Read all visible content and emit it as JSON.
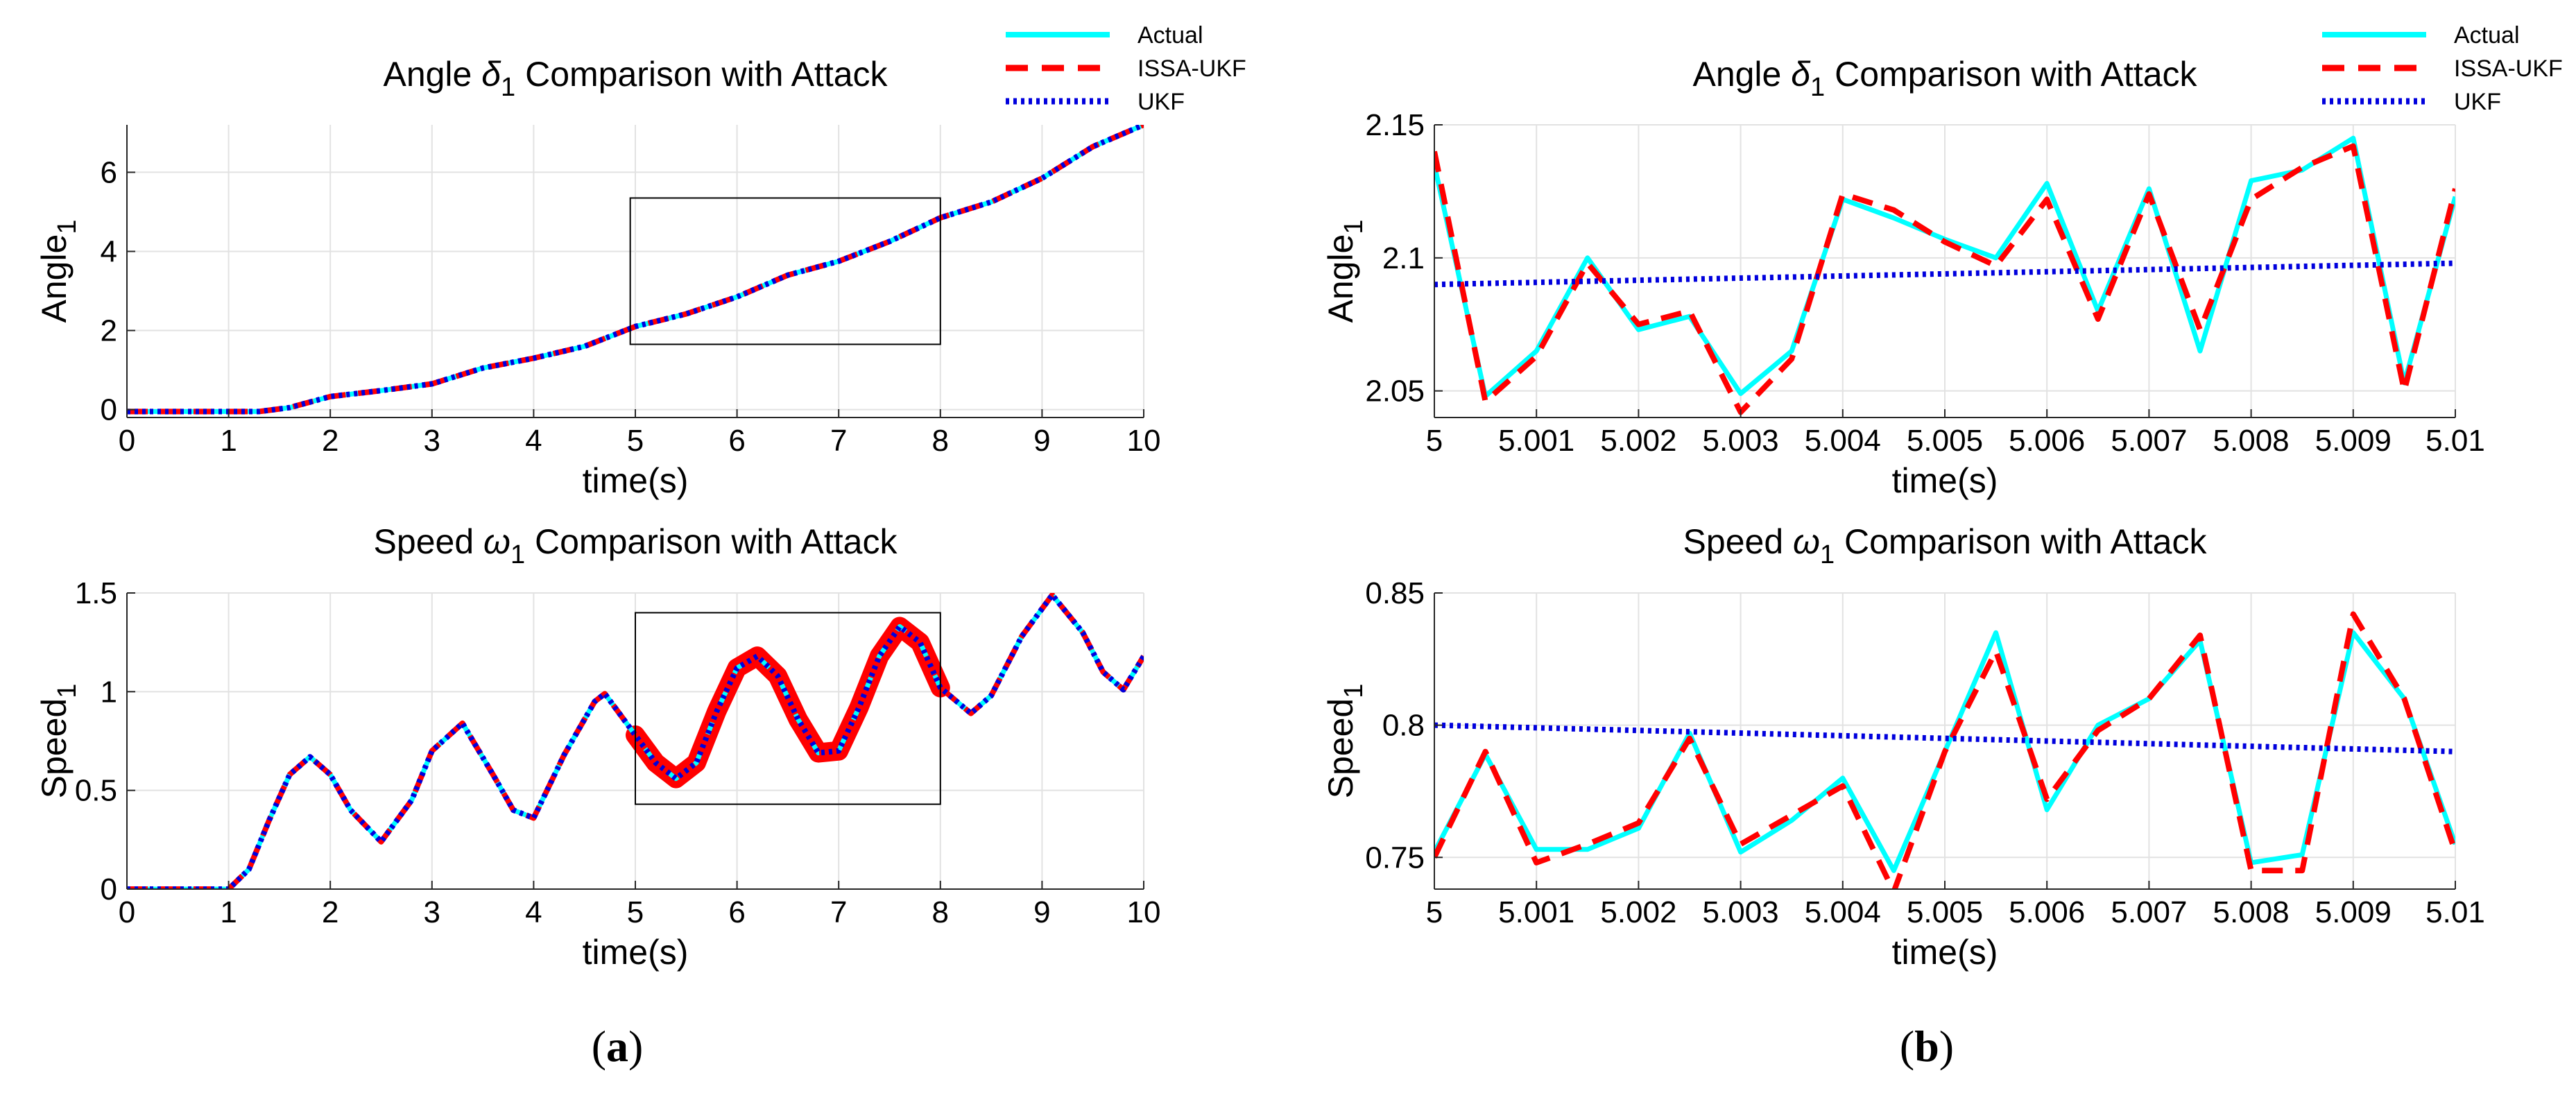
{
  "chart_data": [
    {
      "type": "line",
      "title_prefix": "Angle ",
      "title_symbol": "δ",
      "title_sub": "1",
      "title_suffix": " Comparison with Attack",
      "xlabel": "time(s)",
      "ylabel_base": "Angle",
      "ylabel_sub": "1",
      "xlim": [
        0,
        10
      ],
      "ylim": [
        -0.2,
        7.2
      ],
      "xticks": [
        0,
        1,
        2,
        3,
        4,
        5,
        6,
        7,
        8,
        9,
        10
      ],
      "xtick_labels": [
        "0",
        "1",
        "2",
        "3",
        "4",
        "5",
        "6",
        "7",
        "8",
        "9",
        "10"
      ],
      "yticks": [
        0,
        2,
        4,
        6
      ],
      "ytick_labels": [
        "0",
        "2",
        "4",
        "6"
      ],
      "zoom_box": {
        "x": [
          4.95,
          8.0
        ],
        "y": [
          1.65,
          5.35
        ]
      },
      "legend": [
        "Actual",
        "ISSA-UKF",
        "UKF"
      ],
      "series": [
        {
          "name": "Actual",
          "color": "#00ffff",
          "style": "solid",
          "x": [
            0,
            1,
            1.3,
            1.6,
            2,
            2.5,
            3,
            3.5,
            4,
            4.5,
            5,
            5.5,
            6,
            6.5,
            7,
            7.5,
            8,
            8.5,
            9,
            9.5,
            10
          ],
          "y": [
            -0.05,
            -0.05,
            -0.05,
            0.05,
            0.33,
            0.48,
            0.65,
            1.05,
            1.3,
            1.6,
            2.1,
            2.42,
            2.85,
            3.4,
            3.75,
            4.25,
            4.85,
            5.25,
            5.85,
            6.65,
            7.2
          ]
        },
        {
          "name": "ISSA-UKF",
          "color": "#ff0000",
          "style": "dashed",
          "x": [
            0,
            1,
            1.3,
            1.6,
            2,
            2.5,
            3,
            3.5,
            4,
            4.5,
            5,
            5.5,
            6,
            6.5,
            7,
            7.5,
            8,
            8.5,
            9,
            9.5,
            10
          ],
          "y": [
            -0.05,
            -0.05,
            -0.05,
            0.05,
            0.33,
            0.48,
            0.65,
            1.05,
            1.3,
            1.6,
            2.1,
            2.42,
            2.85,
            3.4,
            3.75,
            4.25,
            4.85,
            5.25,
            5.85,
            6.65,
            7.2
          ]
        },
        {
          "name": "UKF",
          "color": "#0000dd",
          "style": "dotted",
          "x": [
            0,
            1,
            1.3,
            1.6,
            2,
            2.5,
            3,
            3.5,
            4,
            4.5,
            5,
            5.5,
            6,
            6.5,
            7,
            7.5,
            8,
            8.5,
            9,
            9.5,
            10
          ],
          "y": [
            -0.05,
            -0.05,
            -0.05,
            0.05,
            0.33,
            0.48,
            0.65,
            1.05,
            1.3,
            1.6,
            2.1,
            2.42,
            2.85,
            3.4,
            3.75,
            4.25,
            4.85,
            5.25,
            5.85,
            6.65,
            7.2
          ]
        }
      ]
    },
    {
      "type": "line",
      "title_prefix": "Angle ",
      "title_symbol": "δ",
      "title_sub": "1",
      "title_suffix": " Comparison with Attack",
      "xlabel": "time(s)",
      "ylabel_base": "Angle",
      "ylabel_sub": "1",
      "xlim": [
        5,
        5.01
      ],
      "ylim": [
        2.04,
        2.15
      ],
      "xticks": [
        5,
        5.001,
        5.002,
        5.003,
        5.004,
        5.005,
        5.006,
        5.007,
        5.008,
        5.009,
        5.01
      ],
      "xtick_labels": [
        "5",
        "5.001",
        "5.002",
        "5.003",
        "5.004",
        "5.005",
        "5.006",
        "5.007",
        "5.008",
        "5.009",
        "5.01"
      ],
      "yticks": [
        2.05,
        2.1,
        2.15
      ],
      "ytick_labels": [
        "2.05",
        "2.1",
        "2.15"
      ],
      "legend": [
        "Actual",
        "ISSA-UKF",
        "UKF"
      ],
      "series": [
        {
          "name": "Actual",
          "color": "#00ffff",
          "style": "solid",
          "x": [
            5,
            5.0005,
            5.001,
            5.0015,
            5.002,
            5.0025,
            5.003,
            5.0035,
            5.004,
            5.0045,
            5.005,
            5.0055,
            5.006,
            5.0065,
            5.007,
            5.0075,
            5.008,
            5.0085,
            5.009,
            5.0095,
            5.01
          ],
          "y": [
            2.135,
            2.048,
            2.065,
            2.1,
            2.073,
            2.078,
            2.049,
            2.065,
            2.122,
            2.115,
            2.107,
            2.1,
            2.128,
            2.08,
            2.126,
            2.065,
            2.129,
            2.133,
            2.145,
            2.053,
            2.123
          ]
        },
        {
          "name": "ISSA-UKF",
          "color": "#ff0000",
          "style": "dashed",
          "x": [
            5,
            5.0005,
            5.001,
            5.0015,
            5.002,
            5.0025,
            5.003,
            5.0035,
            5.004,
            5.0045,
            5.005,
            5.0055,
            5.006,
            5.0065,
            5.007,
            5.0075,
            5.008,
            5.0085,
            5.009,
            5.0095,
            5.01
          ],
          "y": [
            2.14,
            2.046,
            2.063,
            2.098,
            2.075,
            2.08,
            2.042,
            2.062,
            2.124,
            2.118,
            2.106,
            2.097,
            2.122,
            2.077,
            2.124,
            2.073,
            2.122,
            2.134,
            2.142,
            2.05,
            2.126
          ]
        },
        {
          "name": "UKF",
          "color": "#0000dd",
          "style": "dotted",
          "x": [
            5,
            5.01
          ],
          "y": [
            2.09,
            2.098
          ]
        }
      ]
    },
    {
      "type": "line",
      "title_prefix": "Speed ",
      "title_symbol": "ω",
      "title_sub": "1",
      "title_suffix": " Comparison with Attack",
      "xlabel": "time(s)",
      "ylabel_base": "Speed",
      "ylabel_sub": "1",
      "xlim": [
        0,
        10
      ],
      "ylim": [
        0,
        1.5
      ],
      "xticks": [
        0,
        1,
        2,
        3,
        4,
        5,
        6,
        7,
        8,
        9,
        10
      ],
      "xtick_labels": [
        "0",
        "1",
        "2",
        "3",
        "4",
        "5",
        "6",
        "7",
        "8",
        "9",
        "10"
      ],
      "yticks": [
        0,
        0.5,
        1,
        1.5
      ],
      "ytick_labels": [
        "0",
        "0.5",
        "1",
        "1.5"
      ],
      "zoom_box": {
        "x": [
          5.0,
          8.0
        ],
        "y": [
          0.43,
          1.4
        ]
      },
      "noise_band": {
        "x": [
          5.0,
          8.0
        ],
        "width": 0.05
      },
      "legend": [
        "Actual",
        "ISSA-UKF",
        "UKF"
      ],
      "series": [
        {
          "name": "Actual",
          "color": "#00ffff",
          "style": "solid",
          "x": [
            0,
            1,
            1.2,
            1.4,
            1.6,
            1.8,
            2,
            2.2,
            2.5,
            2.8,
            3.0,
            3.3,
            3.6,
            3.8,
            4.0,
            4.3,
            4.6,
            4.7,
            5.0,
            5.2,
            5.4,
            5.6,
            5.8,
            6.0,
            6.2,
            6.4,
            6.6,
            6.8,
            7.0,
            7.2,
            7.4,
            7.6,
            7.8,
            8.0,
            8.3,
            8.5,
            8.8,
            9.1,
            9.4,
            9.6,
            9.8,
            10
          ],
          "y": [
            0,
            0,
            0.1,
            0.35,
            0.58,
            0.67,
            0.58,
            0.4,
            0.24,
            0.45,
            0.7,
            0.84,
            0.58,
            0.4,
            0.36,
            0.68,
            0.95,
            0.99,
            0.78,
            0.64,
            0.56,
            0.64,
            0.9,
            1.12,
            1.18,
            1.08,
            0.86,
            0.69,
            0.7,
            0.92,
            1.18,
            1.33,
            1.25,
            1.02,
            0.89,
            0.98,
            1.28,
            1.49,
            1.3,
            1.1,
            1.01,
            1.18
          ]
        },
        {
          "name": "ISSA-UKF",
          "color": "#ff0000",
          "style": "dashed",
          "x": [
            0,
            1,
            1.2,
            1.4,
            1.6,
            1.8,
            2,
            2.2,
            2.5,
            2.8,
            3.0,
            3.3,
            3.6,
            3.8,
            4.0,
            4.3,
            4.6,
            4.7,
            5.0,
            5.2,
            5.4,
            5.6,
            5.8,
            6.0,
            6.2,
            6.4,
            6.6,
            6.8,
            7.0,
            7.2,
            7.4,
            7.6,
            7.8,
            8.0,
            8.3,
            8.5,
            8.8,
            9.1,
            9.4,
            9.6,
            9.8,
            10
          ],
          "y": [
            0,
            0,
            0.1,
            0.35,
            0.58,
            0.67,
            0.58,
            0.4,
            0.24,
            0.45,
            0.7,
            0.84,
            0.58,
            0.4,
            0.36,
            0.68,
            0.95,
            0.99,
            0.78,
            0.64,
            0.56,
            0.64,
            0.9,
            1.12,
            1.18,
            1.08,
            0.86,
            0.69,
            0.7,
            0.92,
            1.18,
            1.33,
            1.25,
            1.02,
            0.89,
            0.98,
            1.28,
            1.49,
            1.3,
            1.1,
            1.01,
            1.18
          ]
        },
        {
          "name": "UKF",
          "color": "#0000dd",
          "style": "dotted",
          "x": [
            0,
            1,
            1.2,
            1.4,
            1.6,
            1.8,
            2,
            2.2,
            2.5,
            2.8,
            3.0,
            3.3,
            3.6,
            3.8,
            4.0,
            4.3,
            4.6,
            4.7,
            5.0,
            5.2,
            5.4,
            5.6,
            5.8,
            6.0,
            6.2,
            6.4,
            6.6,
            6.8,
            7.0,
            7.2,
            7.4,
            7.6,
            7.8,
            8.0,
            8.3,
            8.5,
            8.8,
            9.1,
            9.4,
            9.6,
            9.8,
            10
          ],
          "y": [
            0,
            0,
            0.1,
            0.35,
            0.58,
            0.67,
            0.58,
            0.4,
            0.24,
            0.45,
            0.7,
            0.84,
            0.58,
            0.4,
            0.36,
            0.68,
            0.95,
            0.99,
            0.78,
            0.64,
            0.56,
            0.64,
            0.9,
            1.12,
            1.18,
            1.08,
            0.86,
            0.69,
            0.7,
            0.92,
            1.18,
            1.33,
            1.25,
            1.02,
            0.89,
            0.98,
            1.28,
            1.49,
            1.3,
            1.1,
            1.01,
            1.18
          ]
        }
      ]
    },
    {
      "type": "line",
      "title_prefix": "Speed ",
      "title_symbol": "ω",
      "title_sub": "1",
      "title_suffix": " Comparison with Attack",
      "xlabel": "time(s)",
      "ylabel_base": "Speed",
      "ylabel_sub": "1",
      "xlim": [
        5,
        5.01
      ],
      "ylim": [
        0.738,
        0.85
      ],
      "xticks": [
        5,
        5.001,
        5.002,
        5.003,
        5.004,
        5.005,
        5.006,
        5.007,
        5.008,
        5.009,
        5.01
      ],
      "xtick_labels": [
        "5",
        "5.001",
        "5.002",
        "5.003",
        "5.004",
        "5.005",
        "5.006",
        "5.007",
        "5.008",
        "5.009",
        "5.01"
      ],
      "yticks": [
        0.75,
        0.8,
        0.85
      ],
      "ytick_labels": [
        "0.75",
        "0.8",
        "0.85"
      ],
      "legend": [
        "Actual",
        "ISSA-UKF",
        "UKF"
      ],
      "series": [
        {
          "name": "Actual",
          "color": "#00ffff",
          "style": "solid",
          "x": [
            5,
            5.0005,
            5.001,
            5.0015,
            5.002,
            5.0025,
            5.003,
            5.0035,
            5.004,
            5.0045,
            5.005,
            5.0055,
            5.006,
            5.0065,
            5.007,
            5.0075,
            5.008,
            5.0085,
            5.009,
            5.0095,
            5.01
          ],
          "y": [
            0.752,
            0.789,
            0.753,
            0.753,
            0.761,
            0.797,
            0.752,
            0.764,
            0.78,
            0.745,
            0.79,
            0.835,
            0.768,
            0.8,
            0.81,
            0.832,
            0.748,
            0.751,
            0.835,
            0.81,
            0.755
          ]
        },
        {
          "name": "ISSA-UKF",
          "color": "#ff0000",
          "style": "dashed",
          "x": [
            5,
            5.0005,
            5.001,
            5.0015,
            5.002,
            5.0025,
            5.003,
            5.0035,
            5.004,
            5.0045,
            5.005,
            5.0055,
            5.006,
            5.0065,
            5.007,
            5.0075,
            5.008,
            5.0085,
            5.009,
            5.0095,
            5.01
          ],
          "y": [
            0.75,
            0.79,
            0.748,
            0.755,
            0.763,
            0.795,
            0.755,
            0.766,
            0.777,
            0.737,
            0.79,
            0.828,
            0.772,
            0.798,
            0.81,
            0.834,
            0.745,
            0.745,
            0.842,
            0.81,
            0.752
          ]
        },
        {
          "name": "UKF",
          "color": "#0000dd",
          "style": "dotted",
          "x": [
            5,
            5.01
          ],
          "y": [
            0.8,
            0.79
          ]
        }
      ]
    }
  ],
  "panel_labels": [
    "(a)",
    "(b)"
  ]
}
